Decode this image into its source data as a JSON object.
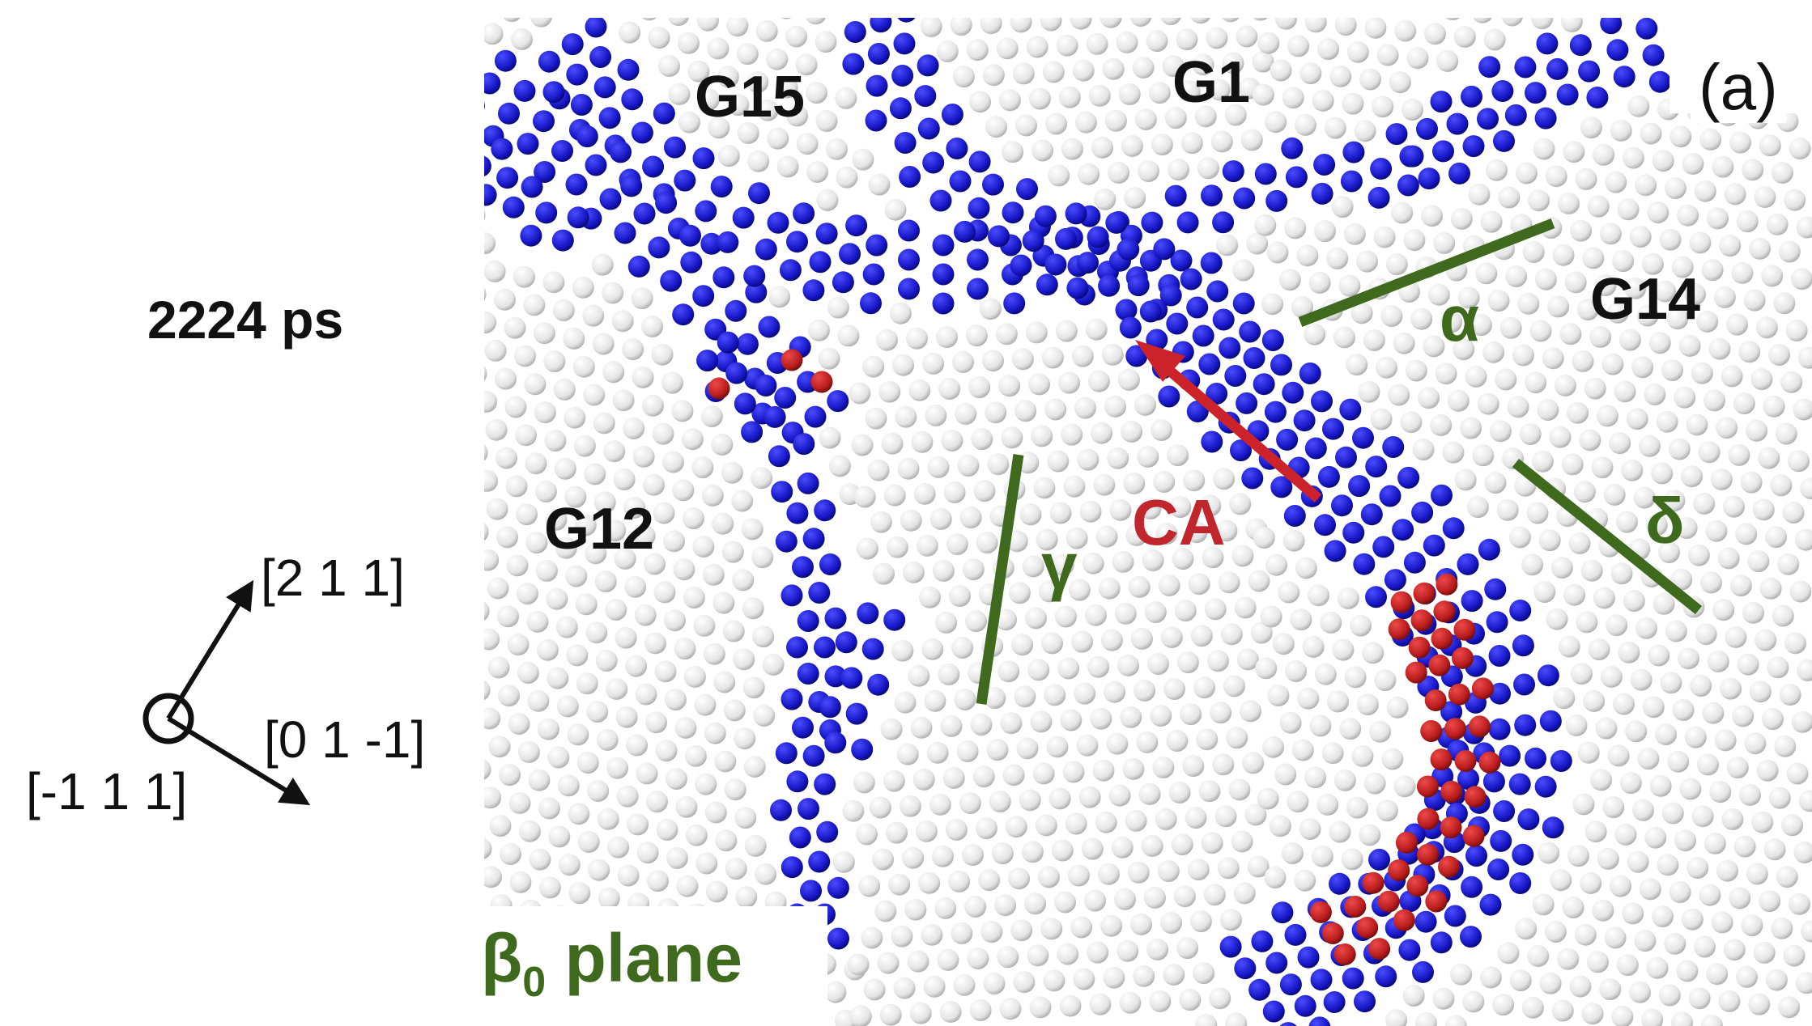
{
  "time_label": "2224 ps",
  "panel_label": "(a)",
  "grains": {
    "g15": "G15",
    "g1": "G1",
    "g14": "G14",
    "g12": "G12"
  },
  "arrow_label": "CA",
  "planes": {
    "alpha": "α",
    "gamma": "γ",
    "delta": "δ"
  },
  "beta_plane": {
    "symbol": "β",
    "subscript": "0",
    "text": "plane"
  },
  "axes": {
    "up": "[2 1 1]",
    "right": "[0 1 -1]",
    "normal": "[-1 1 1]"
  },
  "colors": {
    "host_atom": "#e6e6e6",
    "boundary_atom": "#1414b8",
    "defect_atom": "#b31b1b",
    "plane_line": "#3f6a1e",
    "arrow": "#cc2229"
  }
}
